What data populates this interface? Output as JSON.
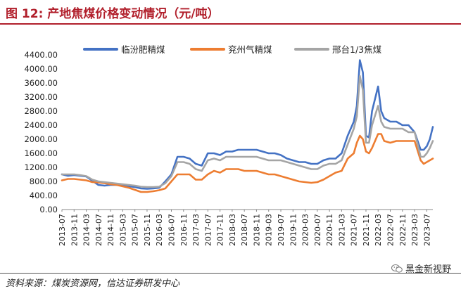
{
  "title": "图 12:  产地焦煤价格变动情况（元/吨）",
  "source": "资料来源：煤炭资源网，信达证券研发中心",
  "watermark": "黑金新视野",
  "chart_data": {
    "type": "line",
    "ylim": [
      0,
      4400
    ],
    "yticks": [
      "0.00",
      "400.00",
      "800.00",
      "1200.00",
      "1600.00",
      "2000.00",
      "2400.00",
      "2800.00",
      "3200.00",
      "3600.00",
      "4000.00",
      "4400.00"
    ],
    "xticks": [
      "2013-07",
      "2013-11",
      "2014-03",
      "2014-07",
      "2014-11",
      "2015-03",
      "2015-07",
      "2015-11",
      "2016-03",
      "2016-07",
      "2016-11",
      "2017-03",
      "2017-07",
      "2017-11",
      "2018-03",
      "2018-07",
      "2018-11",
      "2019-03",
      "2019-07",
      "2019-11",
      "2020-03",
      "2020-07",
      "2020-11",
      "2021-03",
      "2021-07",
      "2021-11",
      "2022-03",
      "2022-07",
      "2022-11",
      "2023-03",
      "2023-07"
    ],
    "x": [
      "2013-07",
      "2013-09",
      "2013-11",
      "2014-01",
      "2014-03",
      "2014-05",
      "2014-07",
      "2014-09",
      "2014-11",
      "2015-01",
      "2015-03",
      "2015-05",
      "2015-07",
      "2015-09",
      "2015-11",
      "2016-01",
      "2016-03",
      "2016-05",
      "2016-07",
      "2016-09",
      "2016-11",
      "2017-01",
      "2017-03",
      "2017-05",
      "2017-07",
      "2017-09",
      "2017-11",
      "2018-01",
      "2018-03",
      "2018-05",
      "2018-07",
      "2018-09",
      "2018-11",
      "2019-01",
      "2019-03",
      "2019-05",
      "2019-07",
      "2019-09",
      "2019-11",
      "2020-01",
      "2020-03",
      "2020-05",
      "2020-07",
      "2020-09",
      "2020-11",
      "2021-01",
      "2021-03",
      "2021-05",
      "2021-07",
      "2021-08",
      "2021-09",
      "2021-10",
      "2021-11",
      "2021-12",
      "2022-01",
      "2022-03",
      "2022-04",
      "2022-05",
      "2022-07",
      "2022-09",
      "2022-11",
      "2023-01",
      "2023-03",
      "2023-05",
      "2023-06",
      "2023-07",
      "2023-08",
      "2023-09"
    ],
    "legend_position": "top",
    "grid": false,
    "series": [
      {
        "name": "临汾肥精煤",
        "color": "#4472c4",
        "values": [
          1000,
          960,
          980,
          960,
          940,
          820,
          700,
          680,
          700,
          700,
          680,
          660,
          640,
          600,
          590,
          600,
          620,
          800,
          1000,
          1500,
          1500,
          1450,
          1300,
          1250,
          1600,
          1600,
          1550,
          1650,
          1650,
          1700,
          1700,
          1700,
          1700,
          1650,
          1600,
          1600,
          1550,
          1450,
          1400,
          1350,
          1350,
          1300,
          1300,
          1400,
          1450,
          1450,
          1600,
          2100,
          2500,
          2950,
          4250,
          3900,
          2100,
          2050,
          2800,
          3500,
          2800,
          2600,
          2500,
          2500,
          2400,
          2400,
          2200,
          1700,
          1700,
          1800,
          2000,
          2350
        ]
      },
      {
        "name": "兖州气精煤",
        "color": "#ed7d31",
        "values": [
          830,
          870,
          870,
          850,
          830,
          780,
          770,
          750,
          720,
          700,
          660,
          620,
          560,
          500,
          500,
          520,
          550,
          600,
          800,
          1000,
          1000,
          1000,
          850,
          850,
          1000,
          1100,
          1050,
          1150,
          1150,
          1150,
          1100,
          1100,
          1100,
          1050,
          1000,
          1000,
          950,
          900,
          850,
          800,
          780,
          760,
          780,
          850,
          950,
          1050,
          1100,
          1450,
          1600,
          1900,
          2100,
          2000,
          1650,
          1600,
          1750,
          2150,
          2150,
          1950,
          1900,
          1950,
          1950,
          1950,
          1950,
          1400,
          1300,
          1350,
          1400,
          1450
        ]
      },
      {
        "name": "邢台1/3焦煤",
        "color": "#a5a5a5",
        "values": [
          1000,
          1000,
          1000,
          980,
          950,
          850,
          800,
          780,
          760,
          740,
          720,
          700,
          680,
          650,
          640,
          640,
          650,
          750,
          950,
          1350,
          1350,
          1300,
          1150,
          1100,
          1400,
          1450,
          1400,
          1500,
          1500,
          1500,
          1500,
          1500,
          1500,
          1450,
          1400,
          1400,
          1400,
          1350,
          1300,
          1250,
          1200,
          1150,
          1150,
          1250,
          1300,
          1300,
          1400,
          1850,
          2300,
          2650,
          3800,
          3400,
          1900,
          1900,
          2400,
          2950,
          2500,
          2350,
          2300,
          2300,
          2300,
          2200,
          2200,
          1500,
          1500,
          1600,
          1750,
          1950
        ]
      }
    ]
  }
}
